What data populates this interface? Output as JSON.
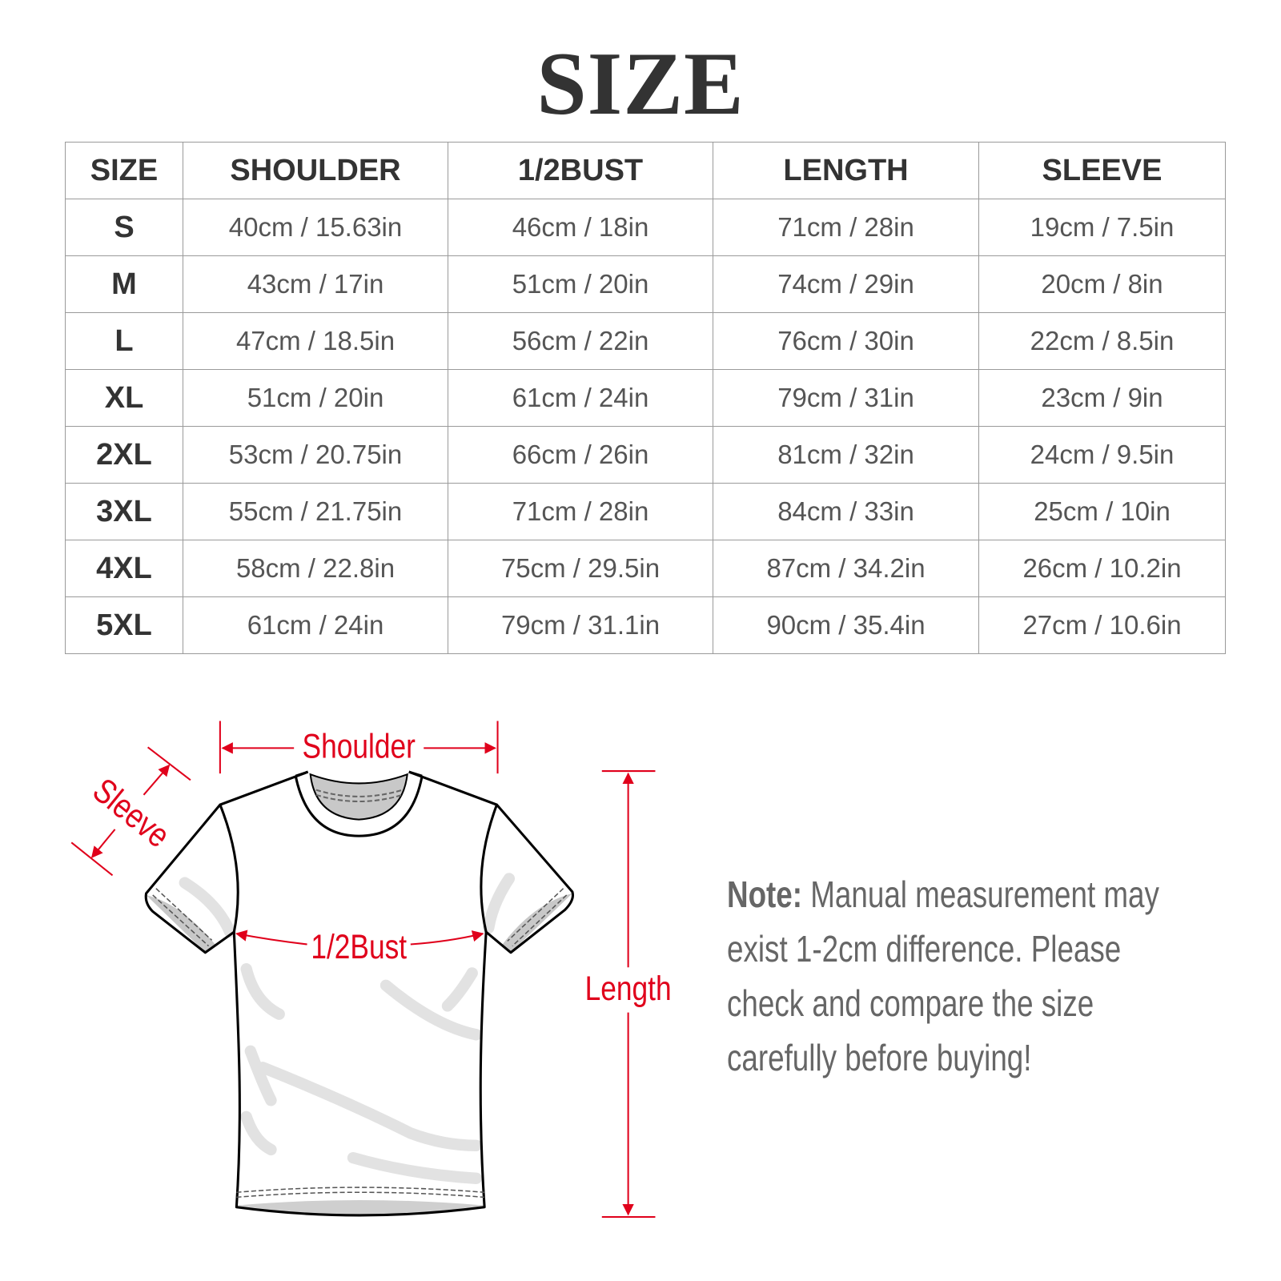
{
  "title": "SIZE",
  "table": {
    "headers": [
      "SIZE",
      "SHOULDER",
      "1/2BUST",
      "LENGTH",
      "SLEEVE"
    ],
    "rows": [
      [
        "S",
        "40cm / 15.63in",
        "46cm / 18in",
        "71cm / 28in",
        "19cm / 7.5in"
      ],
      [
        "M",
        "43cm / 17in",
        "51cm / 20in",
        "74cm / 29in",
        "20cm / 8in"
      ],
      [
        "L",
        "47cm / 18.5in",
        "56cm / 22in",
        "76cm / 30in",
        "22cm / 8.5in"
      ],
      [
        "XL",
        "51cm / 20in",
        "61cm / 24in",
        "79cm / 31in",
        "23cm / 9in"
      ],
      [
        "2XL",
        "53cm / 20.75in",
        "66cm / 26in",
        "81cm / 32in",
        "24cm / 9.5in"
      ],
      [
        "3XL",
        "55cm / 21.75in",
        "71cm / 28in",
        "84cm / 33in",
        "25cm / 10in"
      ],
      [
        "4XL",
        "58cm / 22.8in",
        "75cm / 29.5in",
        "87cm / 34.2in",
        "26cm / 10.2in"
      ],
      [
        "5XL",
        "61cm / 24in",
        "79cm / 31.1in",
        "90cm / 35.4in",
        "27cm / 10.6in"
      ]
    ]
  },
  "diagram": {
    "shoulder_label": "Shoulder",
    "sleeve_label": "Sleeve",
    "bust_label": "1/2Bust",
    "length_label": "Length",
    "annotation_color": "#e0001b"
  },
  "note": {
    "label": "Note:",
    "lines": [
      "Manual measurement may",
      "exist 1-2cm difference. Please",
      "check and compare the size",
      "carefully before buying!"
    ]
  }
}
